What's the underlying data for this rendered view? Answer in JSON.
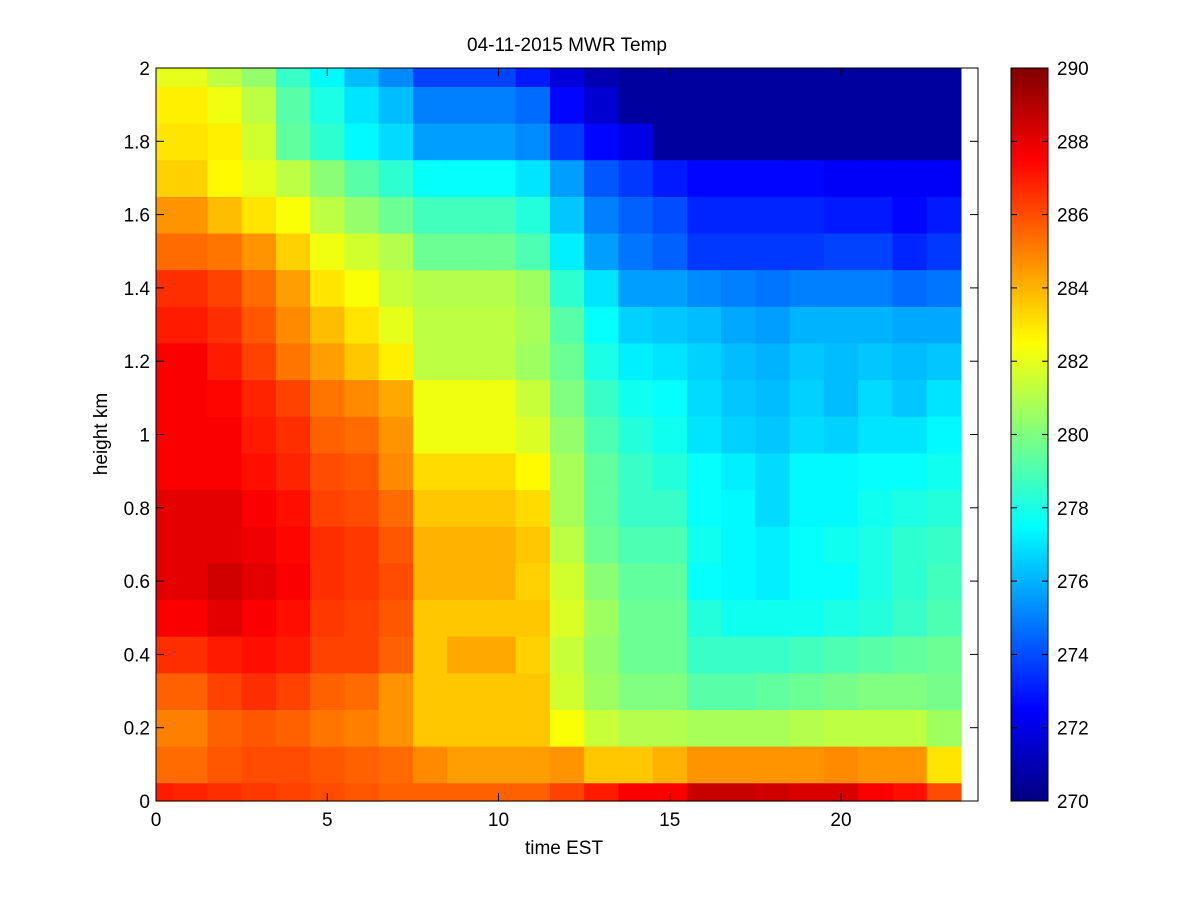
{
  "chart_data": {
    "type": "heatmap",
    "title": "04-11-2015 MWR Temp",
    "xlabel": "time EST",
    "ylabel": "height km",
    "xlim": [
      0,
      24
    ],
    "ylim": [
      0,
      2
    ],
    "x_ticks": [
      0,
      5,
      10,
      15,
      20
    ],
    "y_ticks": [
      0,
      0.2,
      0.4,
      0.6,
      0.8,
      1,
      1.2,
      1.4,
      1.6,
      1.8,
      2
    ],
    "colorbar": {
      "min": 270,
      "max": 290,
      "ticks": [
        270,
        272,
        274,
        276,
        278,
        280,
        282,
        284,
        286,
        288,
        290
      ],
      "colormap": "jet"
    },
    "x_edges": [
      0,
      0.5,
      1.5,
      2.5,
      3.5,
      4.5,
      5.5,
      6.5,
      7.5,
      8.5,
      9.5,
      10.5,
      11.5,
      12.5,
      13.5,
      14.5,
      15.5,
      16.5,
      17.5,
      18.5,
      19.5,
      20.5,
      21.5,
      22.5,
      23.5
    ],
    "y_edges": [
      0,
      0.05,
      0.15,
      0.25,
      0.35,
      0.45,
      0.55,
      0.65,
      0.75,
      0.85,
      0.95,
      1.05,
      1.15,
      1.25,
      1.35,
      1.45,
      1.55,
      1.65,
      1.75,
      1.85,
      1.95,
      2.0
    ],
    "z": [
      [
        287.0,
        286.8,
        286.6,
        286.4,
        286.2,
        286.0,
        285.8,
        285.6,
        285.6,
        285.6,
        285.6,
        285.6,
        286.2,
        287.0,
        287.6,
        287.6,
        288.6,
        288.6,
        288.4,
        288.2,
        288.2,
        287.6,
        287.2,
        286.0
      ],
      [
        285.4,
        285.4,
        285.8,
        286.0,
        286.0,
        285.8,
        285.6,
        285.4,
        284.8,
        284.4,
        284.4,
        284.4,
        284.6,
        283.6,
        283.6,
        284.0,
        284.6,
        284.6,
        284.6,
        284.6,
        284.8,
        284.6,
        284.6,
        283.0
      ],
      [
        285.0,
        285.0,
        285.6,
        285.8,
        285.6,
        285.2,
        285.0,
        284.6,
        283.6,
        283.6,
        283.6,
        283.6,
        282.4,
        281.4,
        281.0,
        281.0,
        280.8,
        280.8,
        280.8,
        281.0,
        281.2,
        281.2,
        281.2,
        280.6
      ],
      [
        285.6,
        285.6,
        286.2,
        286.6,
        286.2,
        285.6,
        285.4,
        284.6,
        283.6,
        283.6,
        283.6,
        283.6,
        281.6,
        280.6,
        280.0,
        280.0,
        279.2,
        279.2,
        279.4,
        279.6,
        279.8,
        280.0,
        280.0,
        279.8
      ],
      [
        286.6,
        286.6,
        287.0,
        287.2,
        287.0,
        286.2,
        286.2,
        285.6,
        283.6,
        284.2,
        284.2,
        283.4,
        281.4,
        280.4,
        279.6,
        279.6,
        278.6,
        278.6,
        278.6,
        278.8,
        279.0,
        279.2,
        279.4,
        279.6
      ],
      [
        287.6,
        287.6,
        288.0,
        287.6,
        287.2,
        286.4,
        286.2,
        285.8,
        283.6,
        283.6,
        283.6,
        283.6,
        281.8,
        280.6,
        279.6,
        279.6,
        278.2,
        277.8,
        277.8,
        277.8,
        278.0,
        278.2,
        278.6,
        279.0
      ],
      [
        288.0,
        288.0,
        288.4,
        288.0,
        287.6,
        286.6,
        286.4,
        286.0,
        284.0,
        284.0,
        284.0,
        283.4,
        281.6,
        280.2,
        279.4,
        279.4,
        277.6,
        277.4,
        277.2,
        277.6,
        277.6,
        278.0,
        278.4,
        278.8
      ],
      [
        288.0,
        288.0,
        288.0,
        287.8,
        287.4,
        286.6,
        286.4,
        285.8,
        284.0,
        284.0,
        284.0,
        283.6,
        281.2,
        279.6,
        279.0,
        279.0,
        277.8,
        277.4,
        277.2,
        277.6,
        277.8,
        278.0,
        278.4,
        278.6
      ],
      [
        288.0,
        288.0,
        288.0,
        287.6,
        287.2,
        286.2,
        286.0,
        285.4,
        283.6,
        283.6,
        283.6,
        283.2,
        280.8,
        279.4,
        278.6,
        278.6,
        277.6,
        277.4,
        276.8,
        277.4,
        277.4,
        277.8,
        278.0,
        278.2
      ],
      [
        287.6,
        287.6,
        287.6,
        287.2,
        286.8,
        286.0,
        285.8,
        284.8,
        283.2,
        283.2,
        283.2,
        282.6,
        280.8,
        279.4,
        278.6,
        278.2,
        277.6,
        277.2,
        276.8,
        277.4,
        277.4,
        277.6,
        277.6,
        277.8
      ],
      [
        287.6,
        287.6,
        287.6,
        287.0,
        286.6,
        285.6,
        285.4,
        284.6,
        282.2,
        282.2,
        282.2,
        281.8,
        280.4,
        279.0,
        278.2,
        277.8,
        277.0,
        276.6,
        276.4,
        276.8,
        276.6,
        277.0,
        277.0,
        277.4
      ],
      [
        287.6,
        287.6,
        287.4,
        286.8,
        286.2,
        285.2,
        284.8,
        284.2,
        282.2,
        282.2,
        282.2,
        281.4,
        280.0,
        278.6,
        277.8,
        277.6,
        276.8,
        276.4,
        276.2,
        276.6,
        276.2,
        276.8,
        276.4,
        277.0
      ],
      [
        287.6,
        287.6,
        287.0,
        286.2,
        285.2,
        284.4,
        283.6,
        282.8,
        281.2,
        281.2,
        281.2,
        280.6,
        279.6,
        278.0,
        277.2,
        277.0,
        276.6,
        276.2,
        276.0,
        276.4,
        276.2,
        276.4,
        276.2,
        276.4
      ],
      [
        287.0,
        287.0,
        286.6,
        285.8,
        284.8,
        283.8,
        283.0,
        282.0,
        281.2,
        281.2,
        281.2,
        280.8,
        279.2,
        277.6,
        276.6,
        276.4,
        276.2,
        275.8,
        275.6,
        276.0,
        276.0,
        276.0,
        275.8,
        275.8
      ],
      [
        286.6,
        286.6,
        286.2,
        285.4,
        284.4,
        283.0,
        282.4,
        281.4,
        281.0,
        281.0,
        281.0,
        280.6,
        278.4,
        277.0,
        275.6,
        275.6,
        275.2,
        275.0,
        274.8,
        275.0,
        275.0,
        275.0,
        274.6,
        274.8
      ],
      [
        285.4,
        285.4,
        285.2,
        284.6,
        283.4,
        282.2,
        281.6,
        281.0,
        279.6,
        279.6,
        279.6,
        279.0,
        277.2,
        275.6,
        274.8,
        274.4,
        273.6,
        273.6,
        273.6,
        273.6,
        273.8,
        273.8,
        273.2,
        273.6
      ],
      [
        284.6,
        284.6,
        283.8,
        283.0,
        282.4,
        281.2,
        280.4,
        279.6,
        278.8,
        278.8,
        278.8,
        278.2,
        276.4,
        275.0,
        274.4,
        274.0,
        273.2,
        273.2,
        273.2,
        273.2,
        273.0,
        273.0,
        272.6,
        273.0
      ],
      [
        283.4,
        283.4,
        282.6,
        282.0,
        281.2,
        280.2,
        279.2,
        278.4,
        277.6,
        277.6,
        277.6,
        277.0,
        275.6,
        274.2,
        273.6,
        273.0,
        272.6,
        272.6,
        272.6,
        272.6,
        272.4,
        272.4,
        272.4,
        272.4
      ],
      [
        283.0,
        283.0,
        282.8,
        281.6,
        279.4,
        278.4,
        277.4,
        276.8,
        275.6,
        275.6,
        275.6,
        275.2,
        273.6,
        272.6,
        272.0,
        270.6,
        270.6,
        270.6,
        270.6,
        270.6,
        270.6,
        270.6,
        270.6,
        270.6
      ],
      [
        282.8,
        282.8,
        282.2,
        281.2,
        279.2,
        278.0,
        277.0,
        276.2,
        275.0,
        275.0,
        275.0,
        274.6,
        272.6,
        271.6,
        270.6,
        270.6,
        270.6,
        270.6,
        270.6,
        270.6,
        270.6,
        270.6,
        270.6,
        270.6
      ],
      [
        282.0,
        282.0,
        281.2,
        280.4,
        278.6,
        277.4,
        276.2,
        275.2,
        273.8,
        273.8,
        273.8,
        273.0,
        271.8,
        271.0,
        270.6,
        270.6,
        270.6,
        270.6,
        270.6,
        270.6,
        270.6,
        270.6,
        270.6,
        270.6
      ]
    ]
  }
}
